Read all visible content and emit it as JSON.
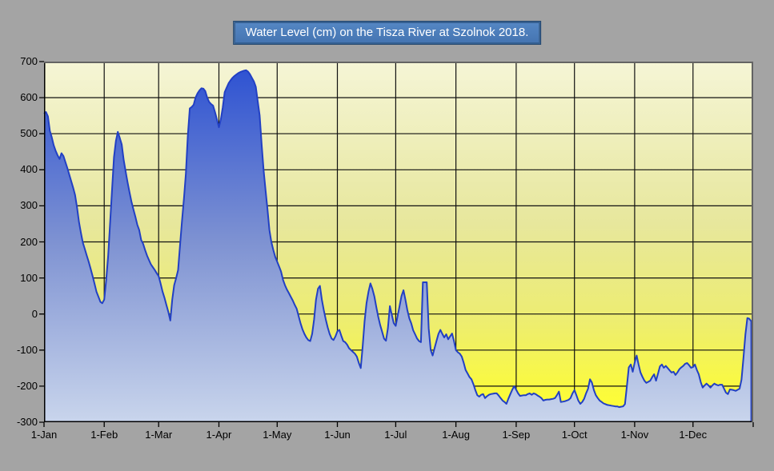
{
  "title": "Water Level (cm) on the Tisza River at Szolnok 2018.",
  "colors": {
    "page_bg": "#A4A4A4",
    "title_fill": "#4B7DBE",
    "title_border": "#356092",
    "title_text": "#FFFFFF",
    "plot_bg_top": "#F5F5D6",
    "plot_bg_bottom": "#FFFF33",
    "area_fill_top": "#2B50D2",
    "area_fill_bottom": "#C9D5EC",
    "line": "#2240C4",
    "grid": "#111111",
    "axis": "#000000",
    "plot_border": "#636363",
    "tick_label": "#000000"
  },
  "chart_data": {
    "type": "area",
    "title": "Water Level (cm) on the Tisza River at Szolnok 2018.",
    "xlabel": "",
    "ylabel": "",
    "ylim": [
      -300,
      700
    ],
    "y_tick_step": 100,
    "y_ticks": [
      700,
      600,
      500,
      400,
      300,
      200,
      100,
      0,
      -100,
      -200,
      -300
    ],
    "x_tick_labels": [
      "1-Jan",
      "1-Feb",
      "1-Mar",
      "1-Apr",
      "1-May",
      "1-Jun",
      "1-Jul",
      "1-Aug",
      "1-Sep",
      "1-Oct",
      "1-Nov",
      "1-Dec"
    ],
    "x_tick_days": [
      0,
      31,
      59,
      90,
      120,
      151,
      181,
      212,
      243,
      273,
      304,
      334
    ],
    "days_in_year": 365,
    "grid": true,
    "legend": "none",
    "points": [
      [
        0,
        555
      ],
      [
        1,
        560
      ],
      [
        2,
        548
      ],
      [
        3,
        508
      ],
      [
        4,
        490
      ],
      [
        5,
        468
      ],
      [
        6,
        452
      ],
      [
        7,
        440
      ],
      [
        8,
        430
      ],
      [
        9,
        446
      ],
      [
        10,
        438
      ],
      [
        12,
        405
      ],
      [
        14,
        368
      ],
      [
        15,
        350
      ],
      [
        16,
        330
      ],
      [
        17,
        295
      ],
      [
        18,
        255
      ],
      [
        19,
        225
      ],
      [
        20,
        198
      ],
      [
        21,
        180
      ],
      [
        22,
        162
      ],
      [
        23,
        145
      ],
      [
        24,
        125
      ],
      [
        25,
        105
      ],
      [
        26,
        84
      ],
      [
        27,
        62
      ],
      [
        28,
        48
      ],
      [
        29,
        34
      ],
      [
        30,
        30
      ],
      [
        31,
        40
      ],
      [
        32,
        95
      ],
      [
        33,
        160
      ],
      [
        34,
        250
      ],
      [
        35,
        345
      ],
      [
        36,
        435
      ],
      [
        37,
        480
      ],
      [
        38,
        505
      ],
      [
        39,
        488
      ],
      [
        40,
        470
      ],
      [
        41,
        428
      ],
      [
        42,
        395
      ],
      [
        43,
        365
      ],
      [
        44,
        338
      ],
      [
        45,
        312
      ],
      [
        46,
        290
      ],
      [
        47,
        270
      ],
      [
        48,
        248
      ],
      [
        49,
        233
      ],
      [
        50,
        205
      ],
      [
        51,
        195
      ],
      [
        52,
        178
      ],
      [
        53,
        162
      ],
      [
        54,
        150
      ],
      [
        55,
        138
      ],
      [
        56,
        130
      ],
      [
        57,
        122
      ],
      [
        58,
        113
      ],
      [
        59,
        105
      ],
      [
        60,
        85
      ],
      [
        61,
        62
      ],
      [
        62,
        45
      ],
      [
        63,
        25
      ],
      [
        64,
        5
      ],
      [
        65,
        -18
      ],
      [
        66,
        40
      ],
      [
        67,
        80
      ],
      [
        68,
        100
      ],
      [
        69,
        122
      ],
      [
        70,
        190
      ],
      [
        71,
        256
      ],
      [
        72,
        320
      ],
      [
        73,
        389
      ],
      [
        74,
        493
      ],
      [
        75,
        570
      ],
      [
        76,
        574
      ],
      [
        77,
        580
      ],
      [
        78,
        600
      ],
      [
        79,
        612
      ],
      [
        80,
        620
      ],
      [
        81,
        626
      ],
      [
        82,
        625
      ],
      [
        83,
        618
      ],
      [
        84,
        600
      ],
      [
        85,
        588
      ],
      [
        86,
        582
      ],
      [
        87,
        578
      ],
      [
        88,
        560
      ],
      [
        89,
        540
      ],
      [
        90,
        518
      ],
      [
        91,
        540
      ],
      [
        92,
        573
      ],
      [
        93,
        615
      ],
      [
        94,
        628
      ],
      [
        95,
        640
      ],
      [
        96,
        648
      ],
      [
        97,
        655
      ],
      [
        98,
        660
      ],
      [
        99,
        664
      ],
      [
        100,
        668
      ],
      [
        101,
        671
      ],
      [
        102,
        673
      ],
      [
        103,
        675
      ],
      [
        104,
        676
      ],
      [
        105,
        672
      ],
      [
        106,
        665
      ],
      [
        107,
        655
      ],
      [
        108,
        645
      ],
      [
        109,
        630
      ],
      [
        110,
        590
      ],
      [
        111,
        551
      ],
      [
        112,
        470
      ],
      [
        113,
        400
      ],
      [
        114,
        345
      ],
      [
        115,
        290
      ],
      [
        116,
        233
      ],
      [
        117,
        200
      ],
      [
        118,
        178
      ],
      [
        119,
        158
      ],
      [
        120,
        145
      ],
      [
        121,
        132
      ],
      [
        122,
        118
      ],
      [
        123,
        95
      ],
      [
        124,
        80
      ],
      [
        125,
        68
      ],
      [
        126,
        58
      ],
      [
        127,
        48
      ],
      [
        128,
        38
      ],
      [
        129,
        26
      ],
      [
        130,
        15
      ],
      [
        131,
        -5
      ],
      [
        132,
        -25
      ],
      [
        133,
        -42
      ],
      [
        134,
        -55
      ],
      [
        135,
        -65
      ],
      [
        136,
        -72
      ],
      [
        137,
        -75
      ],
      [
        138,
        -55
      ],
      [
        139,
        -15
      ],
      [
        140,
        40
      ],
      [
        141,
        70
      ],
      [
        142,
        78
      ],
      [
        143,
        40
      ],
      [
        144,
        11
      ],
      [
        145,
        -15
      ],
      [
        146,
        -37
      ],
      [
        147,
        -55
      ],
      [
        148,
        -68
      ],
      [
        149,
        -72
      ],
      [
        150,
        -62
      ],
      [
        151,
        -48
      ],
      [
        152,
        -44
      ],
      [
        153,
        -60
      ],
      [
        154,
        -75
      ],
      [
        155,
        -78
      ],
      [
        156,
        -85
      ],
      [
        157,
        -95
      ],
      [
        158,
        -100
      ],
      [
        159,
        -105
      ],
      [
        160,
        -110
      ],
      [
        161,
        -118
      ],
      [
        162,
        -135
      ],
      [
        163,
        -150
      ],
      [
        164,
        -90
      ],
      [
        165,
        -20
      ],
      [
        166,
        30
      ],
      [
        167,
        62
      ],
      [
        168,
        85
      ],
      [
        169,
        70
      ],
      [
        170,
        49
      ],
      [
        171,
        20
      ],
      [
        172,
        -7
      ],
      [
        173,
        -30
      ],
      [
        174,
        -49
      ],
      [
        175,
        -68
      ],
      [
        176,
        -74
      ],
      [
        177,
        -40
      ],
      [
        178,
        22
      ],
      [
        179,
        -2
      ],
      [
        180,
        -25
      ],
      [
        181,
        -33
      ],
      [
        182,
        -5
      ],
      [
        183,
        22
      ],
      [
        184,
        50
      ],
      [
        185,
        66
      ],
      [
        186,
        40
      ],
      [
        187,
        11
      ],
      [
        188,
        -12
      ],
      [
        189,
        -26
      ],
      [
        190,
        -45
      ],
      [
        191,
        -56
      ],
      [
        192,
        -68
      ],
      [
        193,
        -75
      ],
      [
        194,
        -78
      ],
      [
        195,
        88
      ],
      [
        196,
        88
      ],
      [
        197,
        88
      ],
      [
        198,
        -40
      ],
      [
        199,
        -100
      ],
      [
        200,
        -115
      ],
      [
        201,
        -95
      ],
      [
        202,
        -75
      ],
      [
        203,
        -55
      ],
      [
        204,
        -44
      ],
      [
        205,
        -55
      ],
      [
        206,
        -65
      ],
      [
        207,
        -56
      ],
      [
        208,
        -70
      ],
      [
        209,
        -62
      ],
      [
        210,
        -54
      ],
      [
        211,
        -75
      ],
      [
        212,
        -100
      ],
      [
        213,
        -106
      ],
      [
        214,
        -110
      ],
      [
        215,
        -118
      ],
      [
        216,
        -135
      ],
      [
        217,
        -155
      ],
      [
        218,
        -165
      ],
      [
        219,
        -175
      ],
      [
        220,
        -181
      ],
      [
        221,
        -195
      ],
      [
        222,
        -211
      ],
      [
        223,
        -225
      ],
      [
        224,
        -229
      ],
      [
        225,
        -224
      ],
      [
        226,
        -222
      ],
      [
        227,
        -233
      ],
      [
        228,
        -228
      ],
      [
        229,
        -224
      ],
      [
        230,
        -222
      ],
      [
        231,
        -221
      ],
      [
        232,
        -220
      ],
      [
        233,
        -220
      ],
      [
        234,
        -226
      ],
      [
        235,
        -233
      ],
      [
        236,
        -240
      ],
      [
        237,
        -244
      ],
      [
        238,
        -249
      ],
      [
        239,
        -235
      ],
      [
        240,
        -222
      ],
      [
        241,
        -210
      ],
      [
        242,
        -200
      ],
      [
        243,
        -210
      ],
      [
        244,
        -220
      ],
      [
        245,
        -227
      ],
      [
        246,
        -226
      ],
      [
        247,
        -225
      ],
      [
        248,
        -225
      ],
      [
        249,
        -222
      ],
      [
        250,
        -220
      ],
      [
        251,
        -224
      ],
      [
        252,
        -220
      ],
      [
        253,
        -222
      ],
      [
        254,
        -226
      ],
      [
        255,
        -229
      ],
      [
        256,
        -233
      ],
      [
        257,
        -240
      ],
      [
        258,
        -238
      ],
      [
        259,
        -237
      ],
      [
        260,
        -237
      ],
      [
        261,
        -236
      ],
      [
        262,
        -235
      ],
      [
        263,
        -233
      ],
      [
        264,
        -225
      ],
      [
        265,
        -215
      ],
      [
        266,
        -244
      ],
      [
        267,
        -243
      ],
      [
        268,
        -242
      ],
      [
        269,
        -240
      ],
      [
        270,
        -238
      ],
      [
        271,
        -233
      ],
      [
        272,
        -220
      ],
      [
        273,
        -211
      ],
      [
        274,
        -225
      ],
      [
        275,
        -240
      ],
      [
        276,
        -249
      ],
      [
        277,
        -244
      ],
      [
        278,
        -235
      ],
      [
        279,
        -220
      ],
      [
        280,
        -207
      ],
      [
        281,
        -181
      ],
      [
        282,
        -190
      ],
      [
        283,
        -211
      ],
      [
        284,
        -225
      ],
      [
        285,
        -233
      ],
      [
        286,
        -240
      ],
      [
        287,
        -244
      ],
      [
        288,
        -248
      ],
      [
        289,
        -250
      ],
      [
        290,
        -252
      ],
      [
        291,
        -253
      ],
      [
        292,
        -254
      ],
      [
        293,
        -255
      ],
      [
        294,
        -256
      ],
      [
        295,
        -256
      ],
      [
        296,
        -258
      ],
      [
        297,
        -257
      ],
      [
        298,
        -256
      ],
      [
        299,
        -250
      ],
      [
        300,
        -200
      ],
      [
        301,
        -148
      ],
      [
        302,
        -140
      ],
      [
        303,
        -160
      ],
      [
        304,
        -135
      ],
      [
        305,
        -115
      ],
      [
        306,
        -140
      ],
      [
        307,
        -162
      ],
      [
        308,
        -174
      ],
      [
        309,
        -185
      ],
      [
        310,
        -191
      ],
      [
        311,
        -188
      ],
      [
        312,
        -185
      ],
      [
        313,
        -175
      ],
      [
        314,
        -167
      ],
      [
        315,
        -185
      ],
      [
        316,
        -165
      ],
      [
        317,
        -145
      ],
      [
        318,
        -140
      ],
      [
        319,
        -149
      ],
      [
        320,
        -144
      ],
      [
        321,
        -150
      ],
      [
        322,
        -156
      ],
      [
        323,
        -162
      ],
      [
        324,
        -160
      ],
      [
        325,
        -169
      ],
      [
        326,
        -162
      ],
      [
        327,
        -153
      ],
      [
        328,
        -148
      ],
      [
        329,
        -144
      ],
      [
        330,
        -138
      ],
      [
        331,
        -136
      ],
      [
        332,
        -142
      ],
      [
        333,
        -149
      ],
      [
        334,
        -147
      ],
      [
        335,
        -140
      ],
      [
        336,
        -155
      ],
      [
        337,
        -167
      ],
      [
        338,
        -189
      ],
      [
        339,
        -204
      ],
      [
        340,
        -198
      ],
      [
        341,
        -193
      ],
      [
        342,
        -198
      ],
      [
        343,
        -204
      ],
      [
        344,
        -198
      ],
      [
        345,
        -193
      ],
      [
        346,
        -196
      ],
      [
        347,
        -198
      ],
      [
        348,
        -196
      ],
      [
        349,
        -196
      ],
      [
        350,
        -207
      ],
      [
        351,
        -218
      ],
      [
        352,
        -222
      ],
      [
        353,
        -209
      ],
      [
        354,
        -210
      ],
      [
        355,
        -211
      ],
      [
        356,
        -213
      ],
      [
        357,
        -210
      ],
      [
        358,
        -207
      ],
      [
        359,
        -182
      ],
      [
        360,
        -120
      ],
      [
        361,
        -56
      ],
      [
        362,
        -11
      ],
      [
        363,
        -13
      ],
      [
        364,
        -20
      ]
    ]
  }
}
